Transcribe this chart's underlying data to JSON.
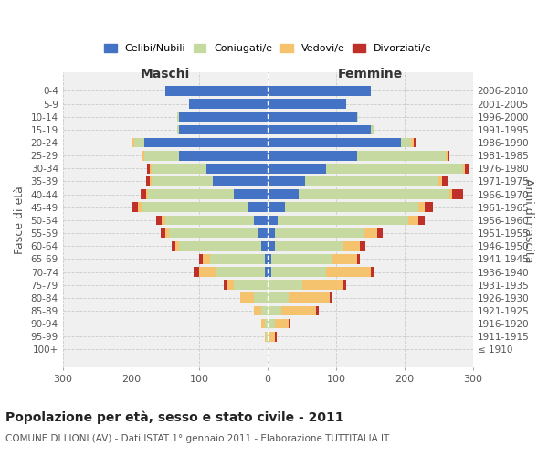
{
  "age_groups": [
    "100+",
    "95-99",
    "90-94",
    "85-89",
    "80-84",
    "75-79",
    "70-74",
    "65-69",
    "60-64",
    "55-59",
    "50-54",
    "45-49",
    "40-44",
    "35-39",
    "30-34",
    "25-29",
    "20-24",
    "15-19",
    "10-14",
    "5-9",
    "0-4"
  ],
  "birth_years": [
    "≤ 1910",
    "1911-1915",
    "1916-1920",
    "1921-1925",
    "1926-1930",
    "1931-1935",
    "1936-1940",
    "1941-1945",
    "1946-1950",
    "1951-1955",
    "1956-1960",
    "1961-1965",
    "1966-1970",
    "1971-1975",
    "1976-1980",
    "1981-1985",
    "1986-1990",
    "1991-1995",
    "1996-2000",
    "2001-2005",
    "2006-2010"
  ],
  "maschi": {
    "celibi": [
      0,
      0,
      0,
      0,
      0,
      0,
      5,
      5,
      10,
      15,
      20,
      30,
      50,
      80,
      90,
      130,
      180,
      130,
      130,
      115,
      150
    ],
    "coniugati": [
      1,
      3,
      5,
      10,
      20,
      50,
      70,
      80,
      120,
      130,
      130,
      155,
      125,
      90,
      80,
      50,
      15,
      3,
      2,
      0,
      0
    ],
    "vedovi": [
      0,
      2,
      5,
      10,
      20,
      10,
      25,
      10,
      5,
      5,
      5,
      5,
      3,
      3,
      3,
      3,
      3,
      0,
      0,
      0,
      0
    ],
    "divorziati": [
      0,
      0,
      0,
      0,
      0,
      5,
      8,
      5,
      5,
      7,
      8,
      8,
      8,
      5,
      3,
      2,
      2,
      0,
      0,
      0,
      0
    ]
  },
  "femmine": {
    "nubili": [
      0,
      0,
      0,
      0,
      0,
      0,
      5,
      5,
      10,
      10,
      15,
      25,
      45,
      55,
      85,
      130,
      195,
      150,
      130,
      115,
      150
    ],
    "coniugate": [
      1,
      3,
      10,
      20,
      30,
      50,
      80,
      90,
      100,
      130,
      190,
      195,
      220,
      195,
      200,
      130,
      15,
      5,
      2,
      0,
      0
    ],
    "vedove": [
      2,
      8,
      20,
      50,
      60,
      60,
      65,
      35,
      25,
      20,
      15,
      10,
      5,
      5,
      3,
      3,
      3,
      0,
      0,
      0,
      0
    ],
    "divorziate": [
      0,
      2,
      2,
      5,
      5,
      5,
      5,
      5,
      8,
      8,
      10,
      12,
      15,
      8,
      5,
      3,
      3,
      0,
      0,
      0,
      0
    ]
  },
  "colors": {
    "celibi_nubili": "#4472C4",
    "coniugati": "#c5d9a0",
    "vedovi": "#f5c36e",
    "divorziati": "#c0302a"
  },
  "xlim": 300,
  "title": "Popolazione per età, sesso e stato civile - 2011",
  "subtitle": "COMUNE DI LIONI (AV) - Dati ISTAT 1° gennaio 2011 - Elaborazione TUTTITALIA.IT",
  "ylabel_left": "Fasce di età",
  "ylabel_right": "Anni di nascita",
  "xlabel_left": "Maschi",
  "xlabel_right": "Femmine",
  "bg_color": "#f0f0f0",
  "grid_color": "#cccccc"
}
